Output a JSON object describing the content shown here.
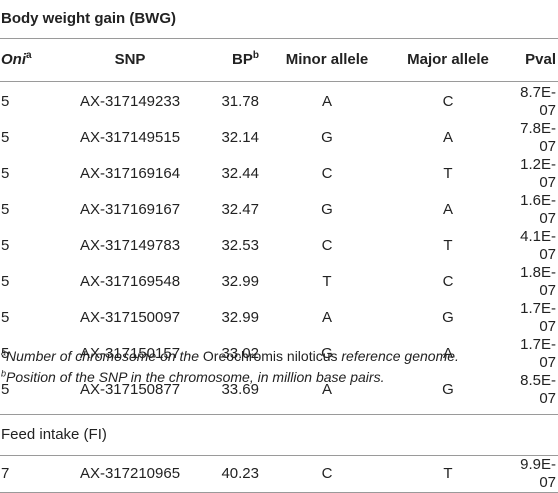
{
  "sections": {
    "bwg_title": "Body weight gain (BWG)",
    "fi_title": "Feed intake (FI)"
  },
  "headers": {
    "oni": "Oni",
    "oni_sup": "a",
    "snp": "SNP",
    "bp": "BP",
    "bp_sup": "b",
    "minor": "Minor allele",
    "major": "Major allele",
    "pval": "Pval"
  },
  "bwg_rows": [
    {
      "oni": "5",
      "snp": "AX-317149233",
      "bp": "31.78",
      "minor": "A",
      "major": "C",
      "pval": "8.7E-07"
    },
    {
      "oni": "5",
      "snp": "AX-317149515",
      "bp": "32.14",
      "minor": "G",
      "major": "A",
      "pval": "7.8E-07"
    },
    {
      "oni": "5",
      "snp": "AX-317169164",
      "bp": "32.44",
      "minor": "C",
      "major": "T",
      "pval": "1.2E-07"
    },
    {
      "oni": "5",
      "snp": "AX-317169167",
      "bp": "32.47",
      "minor": "G",
      "major": "A",
      "pval": "1.6E-07"
    },
    {
      "oni": "5",
      "snp": "AX-317149783",
      "bp": "32.53",
      "minor": "C",
      "major": "T",
      "pval": "4.1E-07"
    },
    {
      "oni": "5",
      "snp": "AX-317169548",
      "bp": "32.99",
      "minor": "T",
      "major": "C",
      "pval": "1.8E-07"
    },
    {
      "oni": "5",
      "snp": "AX-317150097",
      "bp": "32.99",
      "minor": "A",
      "major": "G",
      "pval": "1.7E-07"
    },
    {
      "oni": "5",
      "snp": "AX-317150157",
      "bp": "33.02",
      "minor": "G",
      "major": "A",
      "pval": "1.7E-07"
    },
    {
      "oni": "5",
      "snp": "AX-317150877",
      "bp": "33.69",
      "minor": "A",
      "major": "G",
      "pval": "8.5E-07"
    }
  ],
  "fi_rows": [
    {
      "oni": "7",
      "snp": "AX-317210965",
      "bp": "40.23",
      "minor": "C",
      "major": "T",
      "pval": "9.9E-07"
    }
  ],
  "footnotes": {
    "a_mark": "a",
    "a_pre": "Number of chromosome on the ",
    "a_species": "Oreochromis niloticus",
    "a_post": " reference genome.",
    "b_mark": "b",
    "b_text": "Position of the SNP in the chromosome, in million base pairs."
  }
}
